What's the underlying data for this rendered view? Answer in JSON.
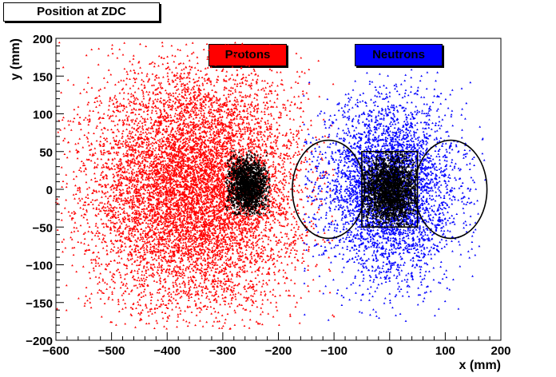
{
  "chart_data": {
    "type": "scatter",
    "title": "Position at ZDC",
    "xlabel": "x (mm)",
    "ylabel": "y (mm)",
    "xlim": [
      -600,
      200
    ],
    "ylim": [
      -200,
      200
    ],
    "grid": false,
    "legend_placement": "top",
    "xticks": [
      "−600",
      "−500",
      "−400",
      "−300",
      "−200",
      "−100",
      "0",
      "100",
      "200"
    ],
    "yticks": [
      "200",
      "150",
      "100",
      "50",
      "0",
      "−50",
      "−100",
      "−150",
      "−200"
    ],
    "series": [
      {
        "name": "Protons",
        "color": "#ff0000",
        "center": [
          -350,
          0
        ],
        "spread": [
          95,
          80
        ],
        "extent_x": [
          -600,
          -100
        ],
        "extent_y": [
          -185,
          195
        ]
      },
      {
        "name": "Neutrons",
        "color": "#0000ff",
        "center": [
          0,
          0
        ],
        "spread": [
          60,
          60
        ],
        "extent_x": [
          -155,
          175
        ],
        "extent_y": [
          -180,
          160
        ]
      },
      {
        "color": "#000000",
        "center": [
          -255,
          5
        ],
        "spread": [
          18,
          18
        ],
        "extent_x": [
          -295,
          -215
        ],
        "extent_y": [
          -35,
          55
        ]
      },
      {
        "color": "#000000",
        "center": [
          0,
          0
        ],
        "spread": [
          25,
          25
        ],
        "extent_x": [
          -50,
          50
        ],
        "extent_y": [
          -50,
          50
        ]
      }
    ],
    "annotations": [
      {
        "shape": "ellipse",
        "center": [
          -110,
          0
        ],
        "radii": [
          65,
          65
        ]
      },
      {
        "shape": "ellipse",
        "center": [
          110,
          0
        ],
        "radii": [
          65,
          65
        ]
      },
      {
        "shape": "rectangle",
        "x": [
          -50,
          50
        ],
        "y": [
          -50,
          50
        ]
      }
    ]
  }
}
